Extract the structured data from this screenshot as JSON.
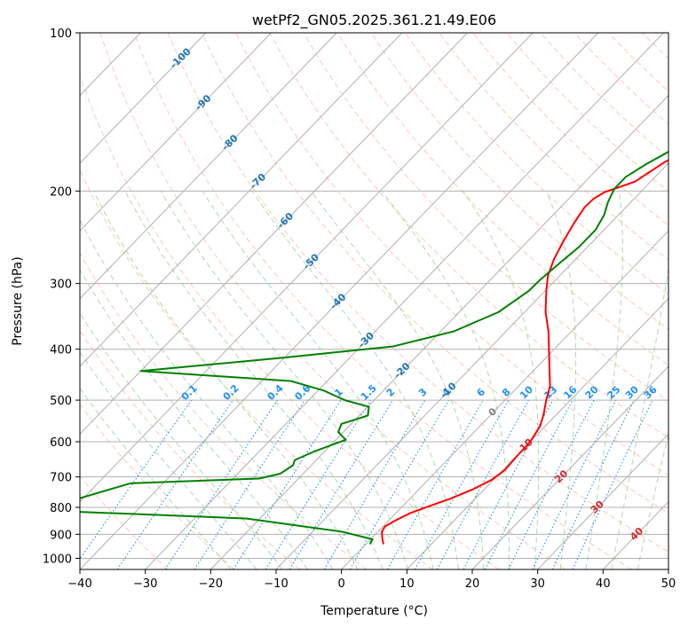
{
  "chart_data": {
    "type": "line",
    "title": "wetPf2_GN05.2025.361.21.49.E06",
    "xlabel": "Temperature (°C)",
    "ylabel": "Pressure (hPa)",
    "xlim": [
      -40,
      50
    ],
    "ylim": [
      1050,
      100
    ],
    "y_scale": "log",
    "x_ticks": [
      -40,
      -30,
      -20,
      -10,
      0,
      10,
      20,
      30,
      40,
      50
    ],
    "y_ticks": [
      100,
      200,
      300,
      400,
      500,
      600,
      700,
      800,
      900,
      1000
    ],
    "isotherm_labels": [
      "-100",
      "-90",
      "-80",
      "-70",
      "-60",
      "-50",
      "-40",
      "-30",
      "-20",
      "-10",
      "0",
      "10",
      "20",
      "30",
      "40"
    ],
    "mixing_ratio_labels": [
      "0.1",
      "0.2",
      "0.4",
      "0.6",
      "1",
      "1.5",
      "2",
      "3",
      "4",
      "6",
      "8",
      "10",
      "13",
      "16",
      "20",
      "25",
      "30",
      "36"
    ],
    "series": [
      {
        "name": "",
        "color": "#ff0000",
        "points": [
          [
            2.7,
            940
          ],
          [
            1.8,
            920
          ],
          [
            0.6,
            890
          ],
          [
            0.3,
            870
          ],
          [
            0.9,
            850
          ],
          [
            2.2,
            820
          ],
          [
            4.5,
            790
          ],
          [
            6.2,
            770
          ],
          [
            8.2,
            740
          ],
          [
            9.7,
            710
          ],
          [
            10.3,
            680
          ],
          [
            10.1,
            640
          ],
          [
            10.0,
            600
          ],
          [
            9.2,
            560
          ],
          [
            7.9,
            530
          ],
          [
            6.3,
            500
          ],
          [
            4.8,
            470
          ],
          [
            2.5,
            440
          ],
          [
            -0.8,
            400
          ],
          [
            -3.5,
            370
          ],
          [
            -6.8,
            340
          ],
          [
            -9.8,
            310
          ],
          [
            -11.8,
            290
          ],
          [
            -13.3,
            270
          ],
          [
            -14.5,
            250
          ],
          [
            -15.6,
            230
          ],
          [
            -16.3,
            215
          ],
          [
            -16.2,
            207
          ],
          [
            -15.5,
            201
          ],
          [
            -14.1,
            197
          ],
          [
            -12.4,
            192
          ],
          [
            -11.7,
            185
          ],
          [
            -10.7,
            176
          ],
          [
            -8.7,
            167
          ],
          [
            -5.5,
            162
          ],
          [
            -1.2,
            156
          ],
          [
            1.2,
            148
          ],
          [
            2.8,
            140
          ],
          [
            3.5,
            134
          ],
          [
            4.0,
            128
          ],
          [
            4.5,
            123
          ],
          [
            5.9,
            117
          ],
          [
            8.4,
            110
          ],
          [
            11.1,
            104
          ],
          [
            12.8,
            100
          ]
        ]
      },
      {
        "name": "",
        "color": "#008000",
        "points": [
          [
            0.6,
            940
          ],
          [
            0.3,
            920
          ],
          [
            -5.5,
            890
          ],
          [
            -22.0,
            840
          ],
          [
            -55.0,
            810
          ],
          [
            -45.0,
            720
          ],
          [
            -26.0,
            705
          ],
          [
            -23.5,
            690
          ],
          [
            -22.8,
            665
          ],
          [
            -23.3,
            650
          ],
          [
            -21.5,
            625
          ],
          [
            -18.5,
            595
          ],
          [
            -20.8,
            575
          ],
          [
            -21.5,
            555
          ],
          [
            -18.7,
            535
          ],
          [
            -19.8,
            515
          ],
          [
            -24.5,
            500
          ],
          [
            -29.0,
            480
          ],
          [
            -35.5,
            460
          ],
          [
            -60.0,
            440
          ],
          [
            -40.0,
            415
          ],
          [
            -25.0,
            395
          ],
          [
            -18.0,
            370
          ],
          [
            -14.0,
            340
          ],
          [
            -12.5,
            310
          ],
          [
            -12.4,
            295
          ],
          [
            -11.9,
            275
          ],
          [
            -11.3,
            255
          ],
          [
            -11.3,
            237
          ],
          [
            -12.2,
            222
          ],
          [
            -13.5,
            210
          ],
          [
            -14.5,
            198
          ],
          [
            -14.5,
            188
          ],
          [
            -13.3,
            178
          ],
          [
            -11.1,
            165
          ],
          [
            -9.6,
            151
          ],
          [
            -9.2,
            140
          ],
          [
            -8.4,
            132
          ],
          [
            -6.7,
            124
          ],
          [
            -4.8,
            116
          ],
          [
            -3.9,
            110
          ],
          [
            -3.2,
            104
          ],
          [
            -2.5,
            100
          ]
        ]
      }
    ],
    "grid": true,
    "colors": {
      "temperature": "#ff0000",
      "dewpoint": "#008000",
      "isotherm_label": "#1f77b4",
      "mixing_ratio": "#1e90ff",
      "dry_adiabat": "#ff9b7d",
      "moist_adiabat": "#8cc98c",
      "grid": "#b0b0b0",
      "hot_isotherm_label": "#d62728",
      "zero_label": "#808080"
    }
  }
}
